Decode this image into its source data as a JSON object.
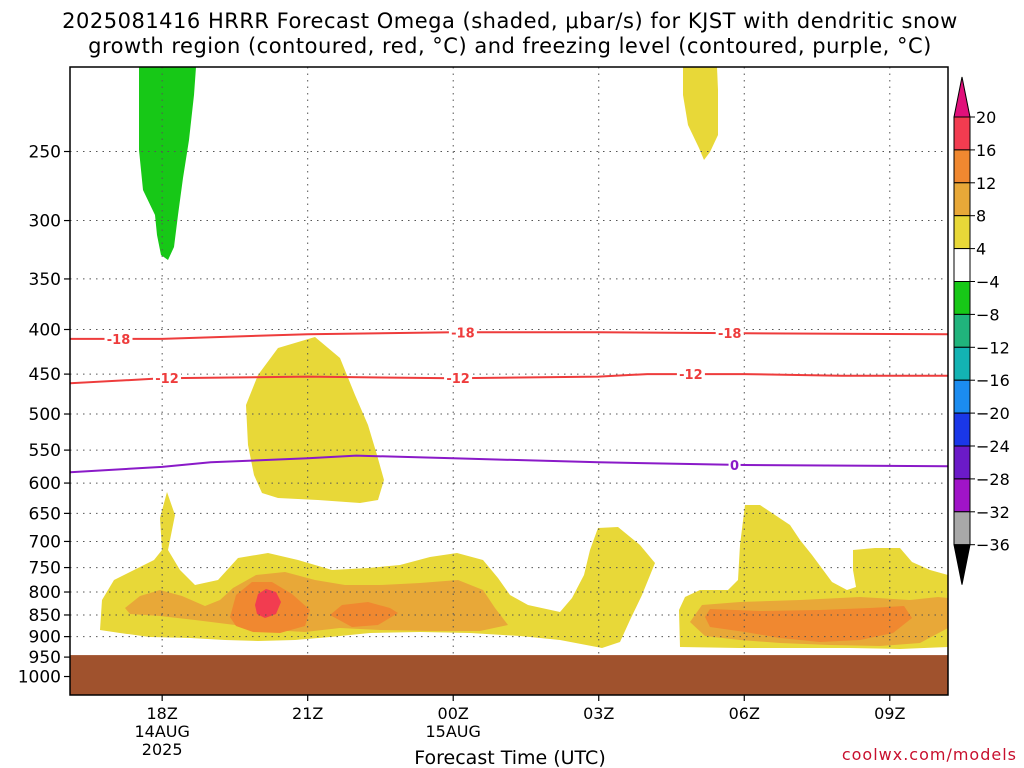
{
  "title_line1": "2025081416 HRRR Forecast Omega (shaded, μbar/s) for KJST with dendritic snow",
  "title_line2": "growth region (contoured, red, °C) and freezing level (contoured, purple, °C)",
  "credit": "coolwx.com/models",
  "chart_data": {
    "type": "heatmap",
    "title": "2025081416 HRRR Forecast Omega (shaded, μbar/s) for KJST with dendritic snow growth region (contoured, red, °C) and freezing level (contoured, purple, °C)",
    "xlabel": "Forecast Time (UTC)",
    "ylabel": "",
    "x_range_hours": [
      -1.9,
      16.2
    ],
    "x_ticks": [
      {
        "hour": 0,
        "label": "18Z",
        "sub1": "14AUG",
        "sub2": "2025"
      },
      {
        "hour": 3,
        "label": "21Z",
        "sub1": "",
        "sub2": ""
      },
      {
        "hour": 6,
        "label": "00Z",
        "sub1": "15AUG",
        "sub2": ""
      },
      {
        "hour": 9,
        "label": "03Z",
        "sub1": "",
        "sub2": ""
      },
      {
        "hour": 12,
        "label": "06Z",
        "sub1": "",
        "sub2": ""
      },
      {
        "hour": 15,
        "label": "09Z",
        "sub1": "",
        "sub2": ""
      }
    ],
    "y_ticks": [
      250,
      300,
      350,
      400,
      450,
      500,
      550,
      600,
      650,
      700,
      750,
      800,
      850,
      900,
      950,
      1000
    ],
    "y_range_hpa": [
      200,
      1050
    ],
    "y_scale": "log-pressure",
    "ground_hpa": 945,
    "colorbar": {
      "levels": [
        "20",
        "16",
        "12",
        "8",
        "4",
        "−4",
        "−8",
        "−12",
        "−16",
        "−20",
        "−24",
        "−28",
        "−32",
        "−36"
      ],
      "colors": [
        "#f23c50",
        "#f08830",
        "#e8a838",
        "#e8d838",
        "#ffffff",
        "#17c817",
        "#20b47c",
        "#13b3b3",
        "#1b8cf0",
        "#1a37e8",
        "#6b1ac8",
        "#a014c8",
        "#a8a8a8"
      ],
      "top_arrow_color": "#e0107a",
      "bottom_arrow_color": "#000000"
    },
    "contours": [
      {
        "label": "-18",
        "color": "#ee3c3c",
        "points_hour_hpa": [
          [
            -1.9,
            410
          ],
          [
            0,
            410
          ],
          [
            3,
            405
          ],
          [
            6,
            403
          ],
          [
            9,
            403
          ],
          [
            12,
            404
          ],
          [
            16.2,
            405
          ]
        ],
        "label_hours": [
          -0.9,
          6.2,
          11.7
        ]
      },
      {
        "label": "-12",
        "color": "#ee3c3c",
        "points_hour_hpa": [
          [
            -1.9,
            461
          ],
          [
            0,
            455
          ],
          [
            3,
            453
          ],
          [
            6,
            455
          ],
          [
            9,
            453
          ],
          [
            10,
            450
          ],
          [
            12,
            450
          ],
          [
            14,
            452
          ],
          [
            16.2,
            452
          ]
        ],
        "label_hours": [
          0.1,
          6.1,
          10.9
        ]
      },
      {
        "label": "0",
        "color": "#8a1ac8",
        "points_hour_hpa": [
          [
            -1.9,
            583
          ],
          [
            0,
            575
          ],
          [
            1,
            568
          ],
          [
            3,
            562
          ],
          [
            4,
            558
          ],
          [
            6,
            562
          ],
          [
            9,
            568
          ],
          [
            12,
            572
          ],
          [
            16.2,
            574
          ]
        ],
        "label_hours": [
          11.8
        ]
      }
    ]
  }
}
